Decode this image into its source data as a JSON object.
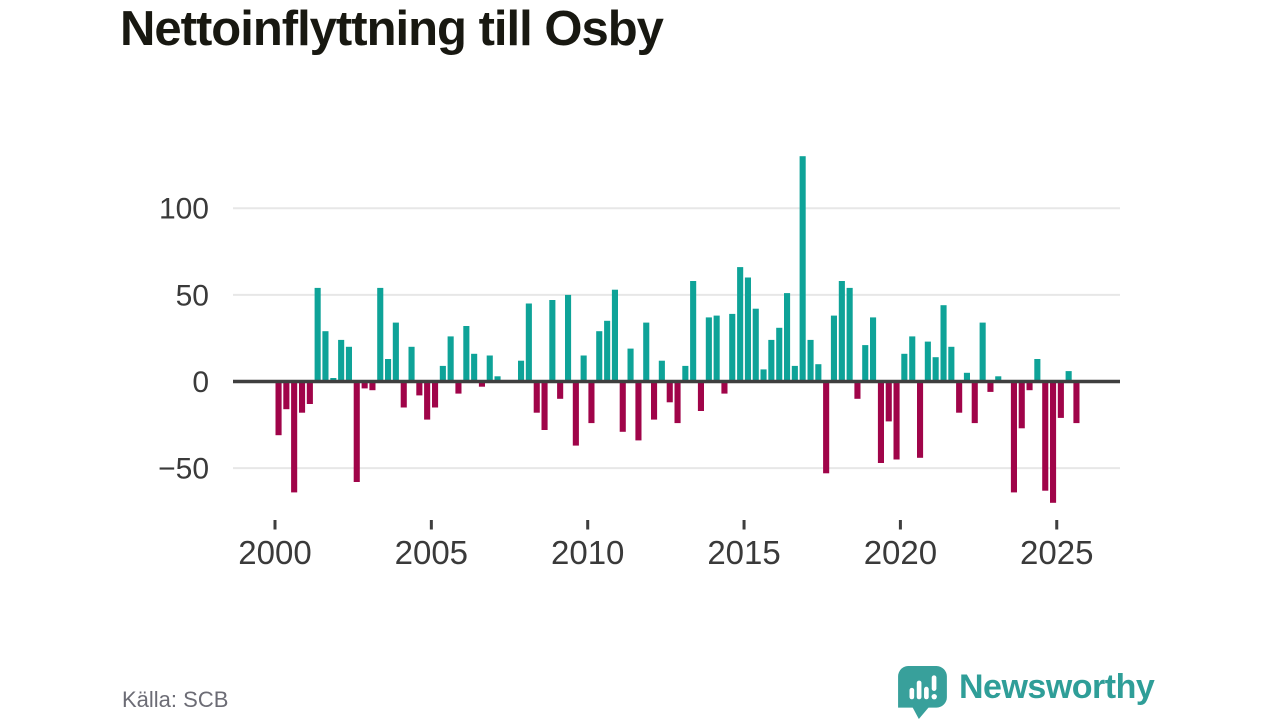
{
  "header": {
    "title": "Nettoinflyttning till Osby"
  },
  "footer": {
    "source": "Källa: SCB",
    "brand": "Newsworthy"
  },
  "colors": {
    "positive_bar": "#0ea398",
    "negative_bar": "#a00449",
    "brand_teal": "#2f9e98",
    "logo_bubble": "#38a09b",
    "zero_line": "#3f3f3f",
    "gridline": "#e7e7e7",
    "axis_text": "#3a3a3a"
  },
  "chart_data": {
    "type": "bar",
    "title": "Nettoinflyttning till Osby",
    "source": "Källa: SCB",
    "frequency": "quarterly",
    "x_start": {
      "year": 2000,
      "quarter": 1
    },
    "x_end": {
      "year": 2025,
      "quarter": 3
    },
    "values": [
      -31,
      -16,
      -64,
      -18,
      -13,
      54,
      29,
      2,
      24,
      20,
      -58,
      -4,
      -5,
      54,
      13,
      34,
      -15,
      20,
      -8,
      -22,
      -15,
      9,
      26,
      -7,
      32,
      16,
      -3,
      15,
      3,
      0,
      0,
      12,
      45,
      -18,
      -28,
      47,
      -10,
      50,
      -37,
      15,
      -24,
      29,
      35,
      53,
      -29,
      19,
      -34,
      34,
      -22,
      12,
      -12,
      -24,
      9,
      58,
      -17,
      37,
      38,
      -7,
      39,
      66,
      60,
      42,
      7,
      24,
      31,
      51,
      9,
      130,
      24,
      10,
      -53,
      38,
      58,
      54,
      -10,
      21,
      37,
      -47,
      -23,
      -45,
      16,
      26,
      -44,
      23,
      14,
      44,
      20,
      -18,
      5,
      -24,
      34,
      -6,
      3,
      0,
      -64,
      -27,
      -5,
      13,
      -63,
      -70,
      -21,
      6,
      -24
    ],
    "y_ticks": [
      100,
      50,
      0,
      -50
    ],
    "x_tick_years": [
      2000,
      2005,
      2010,
      2015,
      2020,
      2025
    ],
    "ylim": [
      -75,
      135
    ],
    "grid": "horizontal",
    "legend": "none"
  }
}
